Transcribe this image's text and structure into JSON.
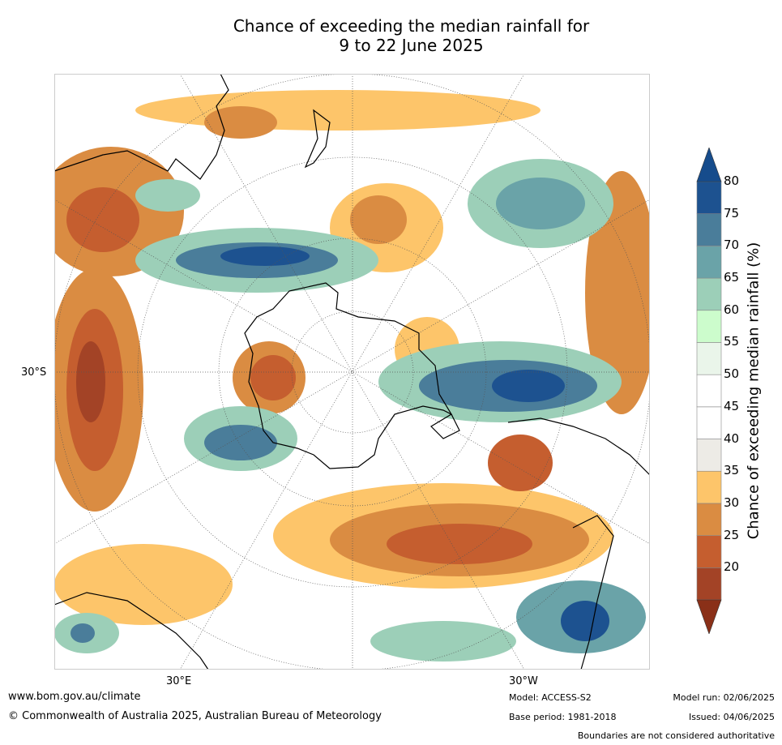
{
  "title": {
    "line1": "Chance of exceeding the median rainfall for",
    "line2": "9 to 22 June 2025"
  },
  "map": {
    "lat_label": "30°S",
    "lon_labels": [
      "30°E",
      "30°W"
    ]
  },
  "colorbar": {
    "label": "Chance of exceeding median rainfall (%)",
    "ticks": [
      "80",
      "75",
      "70",
      "65",
      "60",
      "55",
      "50",
      "45",
      "40",
      "35",
      "30",
      "25",
      "20"
    ],
    "colors": [
      "#a34326",
      "#c55e2f",
      "#da8c42",
      "#fdc56a",
      "#edebe6",
      "#ffffff",
      "#ffffff",
      "#eaf5ea",
      "#ccfccc",
      "#9ccfb8",
      "#6aa3a8",
      "#4a7d9a",
      "#1d5290"
    ],
    "under_color": "#8a3018",
    "over_color": "#164c8c"
  },
  "footer": {
    "url": "www.bom.gov.au/climate",
    "copyright": "© Commonwealth of Australia 2025, Australian Bureau of Meteorology",
    "model": "Model: ACCESS-S2",
    "base_period": "Base period: 1981-2018",
    "model_run": "Model run: 02/06/2025",
    "issued": "Issued: 04/06/2025",
    "disclaimer": "Boundaries are not considered authoritative"
  }
}
